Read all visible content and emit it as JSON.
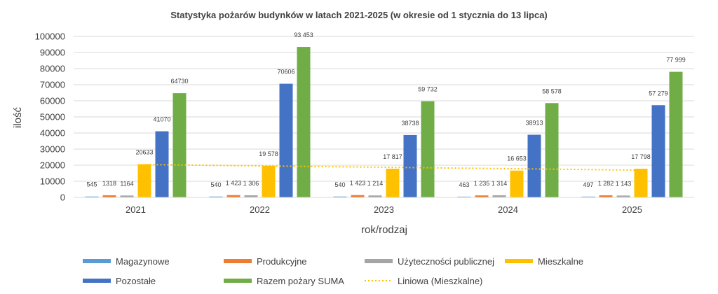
{
  "chart_data": {
    "type": "bar",
    "title": "Statystyka pożarów budynków w latach 2021-2025 (w okresie od 1 stycznia do 13 lipca)",
    "xlabel": "rok/rodzaj",
    "ylabel": "ilość",
    "ylim": [
      0,
      100000
    ],
    "yticks": [
      "0",
      "10000",
      "20000",
      "30000",
      "40000",
      "50000",
      "60000",
      "70000",
      "80000",
      "90000",
      "100000"
    ],
    "grid": true,
    "legend_position": "bottom",
    "categories": [
      "2021",
      "2022",
      "2023",
      "2024",
      "2025"
    ],
    "series": [
      {
        "name": "Magazynowe",
        "color": "#5B9BD5",
        "values": [
          545,
          540,
          540,
          463,
          497
        ],
        "labels": [
          "545",
          "540",
          "540",
          "463",
          "497"
        ]
      },
      {
        "name": "Produkcyjne",
        "color": "#ED7D31",
        "values": [
          1318,
          1423,
          1423,
          1235,
          1282
        ],
        "labels": [
          "1318",
          "1 423",
          "1 423",
          "1 235",
          "1 282"
        ]
      },
      {
        "name": "Użyteczności publicznej",
        "color": "#A5A5A5",
        "values": [
          1164,
          1306,
          1214,
          1314,
          1143
        ],
        "labels": [
          "1164",
          "1 306",
          "1 214",
          "1 314",
          "1 143"
        ]
      },
      {
        "name": "Mieszkalne",
        "color": "#FFC000",
        "values": [
          20633,
          19578,
          17817,
          16653,
          17798
        ],
        "labels": [
          "20633",
          "19 578",
          "17 817",
          "16 653",
          "17 798"
        ]
      },
      {
        "name": "Pozostałe",
        "color": "#4472C4",
        "values": [
          41070,
          70606,
          38738,
          38913,
          57279
        ],
        "labels": [
          "41070",
          "70606",
          "38738",
          "38913",
          "57 279"
        ]
      },
      {
        "name": "Razem pożary SUMA",
        "color": "#70AD47",
        "values": [
          64730,
          93453,
          59732,
          58578,
          77999
        ],
        "labels": [
          "64730",
          "93 453",
          "59 732",
          "58 578",
          "77 999"
        ]
      }
    ],
    "trendline": {
      "name": "Liniowa (Mieszkalne)",
      "color": "#FFC000",
      "style": "dotted",
      "start": 20370,
      "end": 16900
    }
  }
}
